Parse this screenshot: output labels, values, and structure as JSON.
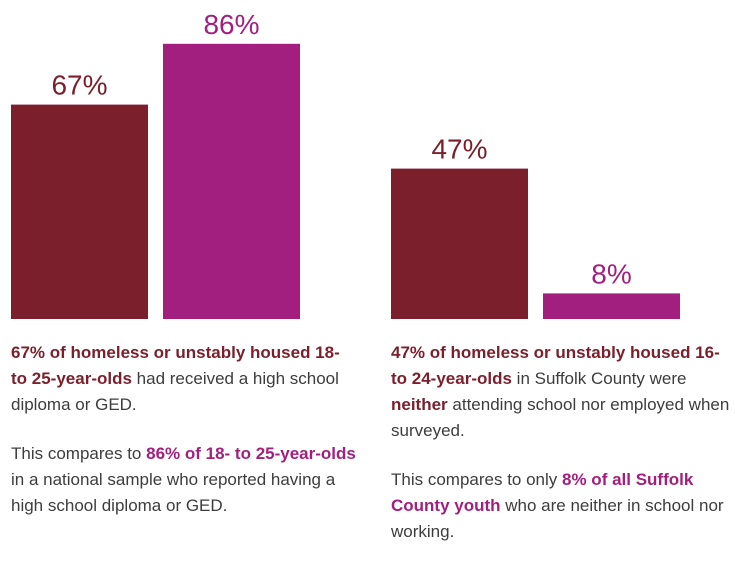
{
  "colors": {
    "primary": "#7a1f2b",
    "secondary": "#a21f7f",
    "text": "#3d3d3d"
  },
  "chart_data": [
    {
      "type": "bar",
      "categories": [
        "Homeless or unstably housed 18- to 25-year-olds",
        "18- to 25-year-olds (national sample)"
      ],
      "values": [
        67,
        86
      ],
      "data_labels": [
        "67%",
        "86%"
      ],
      "ylim": [
        0,
        100
      ],
      "title": "",
      "xlabel": "",
      "ylabel": "",
      "grid": false,
      "colors": [
        "#7a1f2b",
        "#a21f7f"
      ]
    },
    {
      "type": "bar",
      "categories": [
        "Homeless or unstably housed 16- to 24-year-olds in Suffolk County",
        "All Suffolk County youth"
      ],
      "values": [
        47,
        8
      ],
      "data_labels": [
        "47%",
        "8%"
      ],
      "ylim": [
        0,
        100
      ],
      "title": "",
      "xlabel": "",
      "ylabel": "",
      "grid": false,
      "colors": [
        "#7a1f2b",
        "#a21f7f"
      ]
    }
  ],
  "left_text": {
    "p1_bold": "67% of homeless or unstably housed 18- to 25-year-olds",
    "p1_rest": " had received a high school diploma or GED.",
    "p2_start": "This compares to ",
    "p2_bold": "86% of 18- to 25-year-olds",
    "p2_rest": " in a national sample who reported having a high school diploma or GED."
  },
  "right_text": {
    "p1_bold": "47% of homeless or unstably housed 16- to 24-year-olds",
    "p1_mid": " in Suffolk County were ",
    "p1_bold2": "neither",
    "p1_rest": " attending school nor employed when surveyed.",
    "p2_start": "This compares to only ",
    "p2_bold": "8% of all Suffolk County youth",
    "p2_rest": " who are neither in school nor working."
  }
}
